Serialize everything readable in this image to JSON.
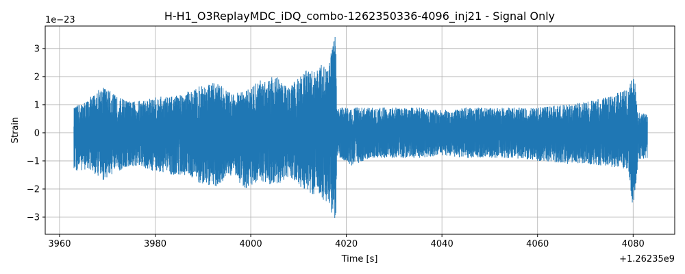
{
  "chart_data": {
    "type": "line",
    "title": "H-H1_O3ReplayMDC_iDQ_combo-1262350336-4096_inj21 - Signal Only",
    "xlabel": "Time [s]",
    "ylabel": "Strain",
    "x_offset_label": "+1.26235e9",
    "y_offset_label": "1e−23",
    "xlim": [
      3957,
      4088.7
    ],
    "ylim": [
      -3.61,
      3.8
    ],
    "xticks": [
      3960,
      3980,
      4000,
      4020,
      4040,
      4060,
      4080
    ],
    "yticks": [
      -3,
      -2,
      -1,
      0,
      1,
      2,
      3
    ],
    "grid": true,
    "line_color": "#1f77b4",
    "series": [
      {
        "description_of_values": "oscillating strain signal; amplitude envelope (upper, lower) in units of 1e-23 vs time",
        "envelope": [
          [
            3963,
            0.9,
            -1.4
          ],
          [
            3966,
            1.2,
            -1.3
          ],
          [
            3969,
            1.7,
            -1.7
          ],
          [
            3972,
            1.3,
            -1.4
          ],
          [
            3975,
            1.1,
            -1.2
          ],
          [
            3978,
            1.2,
            -1.3
          ],
          [
            3981,
            1.3,
            -1.4
          ],
          [
            3984,
            1.3,
            -1.5
          ],
          [
            3987,
            1.5,
            -1.5
          ],
          [
            3990,
            1.7,
            -1.9
          ],
          [
            3993,
            1.8,
            -1.9
          ],
          [
            3996,
            1.4,
            -1.5
          ],
          [
            3999,
            1.5,
            -2.0
          ],
          [
            4002,
            1.9,
            -1.7
          ],
          [
            4005,
            2.1,
            -1.9
          ],
          [
            4008,
            1.6,
            -1.6
          ],
          [
            4011,
            2.2,
            -2.0
          ],
          [
            4014,
            2.3,
            -2.3
          ],
          [
            4016,
            2.6,
            -2.5
          ],
          [
            4017.8,
            3.5,
            -3.25
          ],
          [
            4018,
            0.9,
            -0.8
          ],
          [
            4021,
            0.9,
            -1.2
          ],
          [
            4025,
            0.9,
            -0.9
          ],
          [
            4030,
            0.9,
            -0.9
          ],
          [
            4035,
            0.9,
            -0.9
          ],
          [
            4040,
            0.8,
            -0.8
          ],
          [
            4045,
            0.9,
            -0.9
          ],
          [
            4050,
            0.9,
            -0.9
          ],
          [
            4055,
            0.9,
            -0.9
          ],
          [
            4060,
            0.9,
            -1.0
          ],
          [
            4065,
            1.0,
            -1.1
          ],
          [
            4070,
            1.1,
            -1.1
          ],
          [
            4075,
            1.3,
            -1.2
          ],
          [
            4079,
            1.6,
            -1.3
          ],
          [
            4080.2,
            2.15,
            -3.25
          ],
          [
            4081,
            0.75,
            -0.95
          ],
          [
            4083,
            0.65,
            -0.9
          ]
        ]
      }
    ]
  }
}
